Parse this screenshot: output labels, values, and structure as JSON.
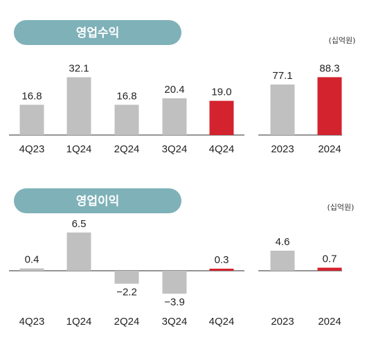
{
  "chart_data": [
    {
      "type": "bar",
      "title": "영업수익",
      "unit": "(십억원)",
      "colors": {
        "default": "#c0c0c0",
        "highlight": "#d3232e",
        "pill": "#7fb1b8"
      },
      "panels": [
        {
          "categories": [
            "4Q23",
            "1Q24",
            "2Q24",
            "3Q24",
            "4Q24"
          ],
          "values": [
            16.8,
            32.1,
            16.8,
            20.4,
            19.0
          ],
          "labels": [
            "16.8",
            "32.1",
            "16.8",
            "20.4",
            "19.0"
          ],
          "highlight_index": 4
        },
        {
          "categories": [
            "2023",
            "2024"
          ],
          "values": [
            77.1,
            88.3
          ],
          "labels": [
            "77.1",
            "88.3"
          ],
          "highlight_index": 1
        }
      ]
    },
    {
      "type": "bar",
      "title": "영업이익",
      "unit": "(십억원)",
      "colors": {
        "default": "#c0c0c0",
        "highlight": "#d3232e",
        "pill": "#7fb1b8"
      },
      "panels": [
        {
          "categories": [
            "4Q23",
            "1Q24",
            "2Q24",
            "3Q24",
            "4Q24"
          ],
          "values": [
            0.4,
            6.5,
            -2.2,
            -3.9,
            0.3
          ],
          "labels": [
            "0.4",
            "6.5",
            "−2.2",
            "−3.9",
            "0.3"
          ],
          "highlight_index": 4
        },
        {
          "categories": [
            "2023",
            "2024"
          ],
          "values": [
            4.6,
            0.7
          ],
          "labels": [
            "4.6",
            "0.7"
          ],
          "highlight_index": 1
        }
      ]
    }
  ]
}
